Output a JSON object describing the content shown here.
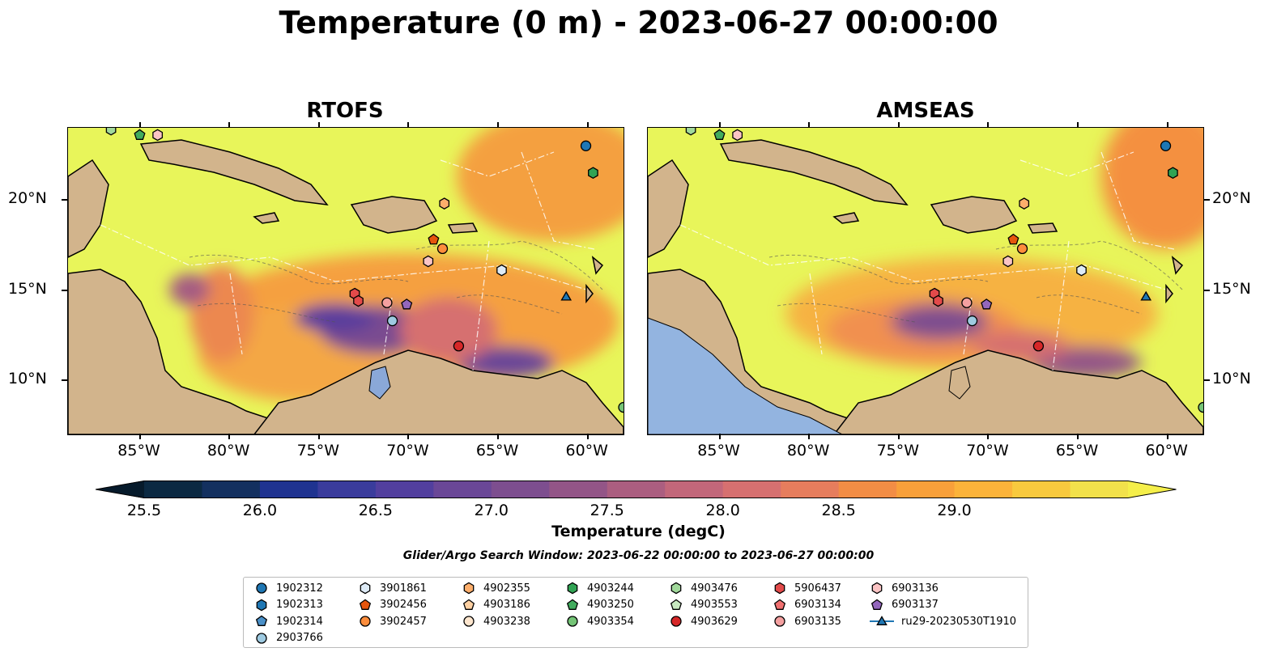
{
  "title": "Temperature (0 m) - 2023-06-27 00:00:00",
  "panels": [
    {
      "id": "rtofs",
      "title": "RTOFS"
    },
    {
      "id": "amseas",
      "title": "AMSEAS"
    }
  ],
  "lon_ticks": [
    "85°W",
    "80°W",
    "75°W",
    "70°W",
    "65°W",
    "60°W"
  ],
  "lat_ticks": [
    "20°N",
    "15°N",
    "10°N"
  ],
  "colorbar": {
    "label": "Temperature (degC)",
    "ticks": [
      "25.5",
      "26.0",
      "26.5",
      "27.0",
      "27.5",
      "28.0",
      "28.5",
      "29.0"
    ],
    "colors": [
      "#0b2942",
      "#13305f",
      "#1f3390",
      "#3a3c9c",
      "#523f9e",
      "#6a4797",
      "#7d4e8f",
      "#935587",
      "#ab5e80",
      "#c2677a",
      "#d67070",
      "#e67d5d",
      "#f28d45",
      "#f8a03a",
      "#fbb33a",
      "#f8c93e",
      "#f2e14b"
    ]
  },
  "search_window": "Glider/Argo Search Window: 2023-06-22 00:00:00 to 2023-06-27 00:00:00",
  "legend": [
    {
      "label": "1902312",
      "marker": "circle",
      "color": "#1f77b4"
    },
    {
      "label": "1902313",
      "marker": "hexagon",
      "color": "#1f77b4"
    },
    {
      "label": "1902314",
      "marker": "pentagon",
      "color": "#4a90c8"
    },
    {
      "label": "2903766",
      "marker": "circle",
      "color": "#9ecae1"
    },
    {
      "label": "3901861",
      "marker": "hexagon",
      "color": "#deebf7"
    },
    {
      "label": "3902456",
      "marker": "pentagon",
      "color": "#e6550d"
    },
    {
      "label": "3902457",
      "marker": "circle",
      "color": "#fd8d3c"
    },
    {
      "label": "4902355",
      "marker": "hexagon",
      "color": "#fdae6b"
    },
    {
      "label": "4903186",
      "marker": "pentagon",
      "color": "#fdd0a2"
    },
    {
      "label": "4903238",
      "marker": "circle",
      "color": "#fee6ce"
    },
    {
      "label": "4903244",
      "marker": "hexagon",
      "color": "#31a354"
    },
    {
      "label": "4903250",
      "marker": "pentagon",
      "color": "#41ab5d"
    },
    {
      "label": "4903354",
      "marker": "circle",
      "color": "#74c476"
    },
    {
      "label": "4903476",
      "marker": "hexagon",
      "color": "#a1d99b"
    },
    {
      "label": "4903553",
      "marker": "pentagon",
      "color": "#c7e9c0"
    },
    {
      "label": "4903629",
      "marker": "circle",
      "color": "#d62728"
    },
    {
      "label": "5906437",
      "marker": "hexagon",
      "color": "#e34a4a"
    },
    {
      "label": "6903134",
      "marker": "pentagon",
      "color": "#f07070"
    },
    {
      "label": "6903135",
      "marker": "circle",
      "color": "#f4a0a0"
    },
    {
      "label": "6903136",
      "marker": "hexagon",
      "color": "#fbc4c4"
    },
    {
      "label": "6903137",
      "marker": "pentagon",
      "color": "#9467bd"
    },
    {
      "label": "ru29-20230530T1910",
      "marker": "triangle",
      "color": "#1f77b4"
    }
  ],
  "floats": [
    {
      "id": "1902312",
      "lon": -60.1,
      "lat": 23.0
    },
    {
      "id": "4903244",
      "lon": -59.7,
      "lat": 21.5
    },
    {
      "id": "4903250",
      "lon": -85.0,
      "lat": 23.6
    },
    {
      "id": "4903476",
      "lon": -86.6,
      "lat": 23.9
    },
    {
      "id": "6903136",
      "lon": -84.0,
      "lat": 23.6
    },
    {
      "id": "4902355",
      "lon": -68.0,
      "lat": 19.8
    },
    {
      "id": "3902456",
      "lon": -68.6,
      "lat": 17.8
    },
    {
      "id": "3902457",
      "lon": -68.1,
      "lat": 17.3
    },
    {
      "id": "6903136",
      "lon": -68.9,
      "lat": 16.6
    },
    {
      "id": "3901861",
      "lon": -64.8,
      "lat": 16.1
    },
    {
      "id": "5906437",
      "lon": -73.0,
      "lat": 14.8
    },
    {
      "id": "5906437",
      "lon": -72.8,
      "lat": 14.4
    },
    {
      "id": "6903135",
      "lon": -71.2,
      "lat": 14.3
    },
    {
      "id": "6903137",
      "lon": -70.1,
      "lat": 14.2
    },
    {
      "id": "2903766",
      "lon": -70.9,
      "lat": 13.3
    },
    {
      "id": "4903629",
      "lon": -67.2,
      "lat": 11.9
    },
    {
      "id": "4903354",
      "lon": -58.0,
      "lat": 8.5
    },
    {
      "id": "ru29-20230530T1910",
      "lon": -61.2,
      "lat": 14.6
    }
  ]
}
